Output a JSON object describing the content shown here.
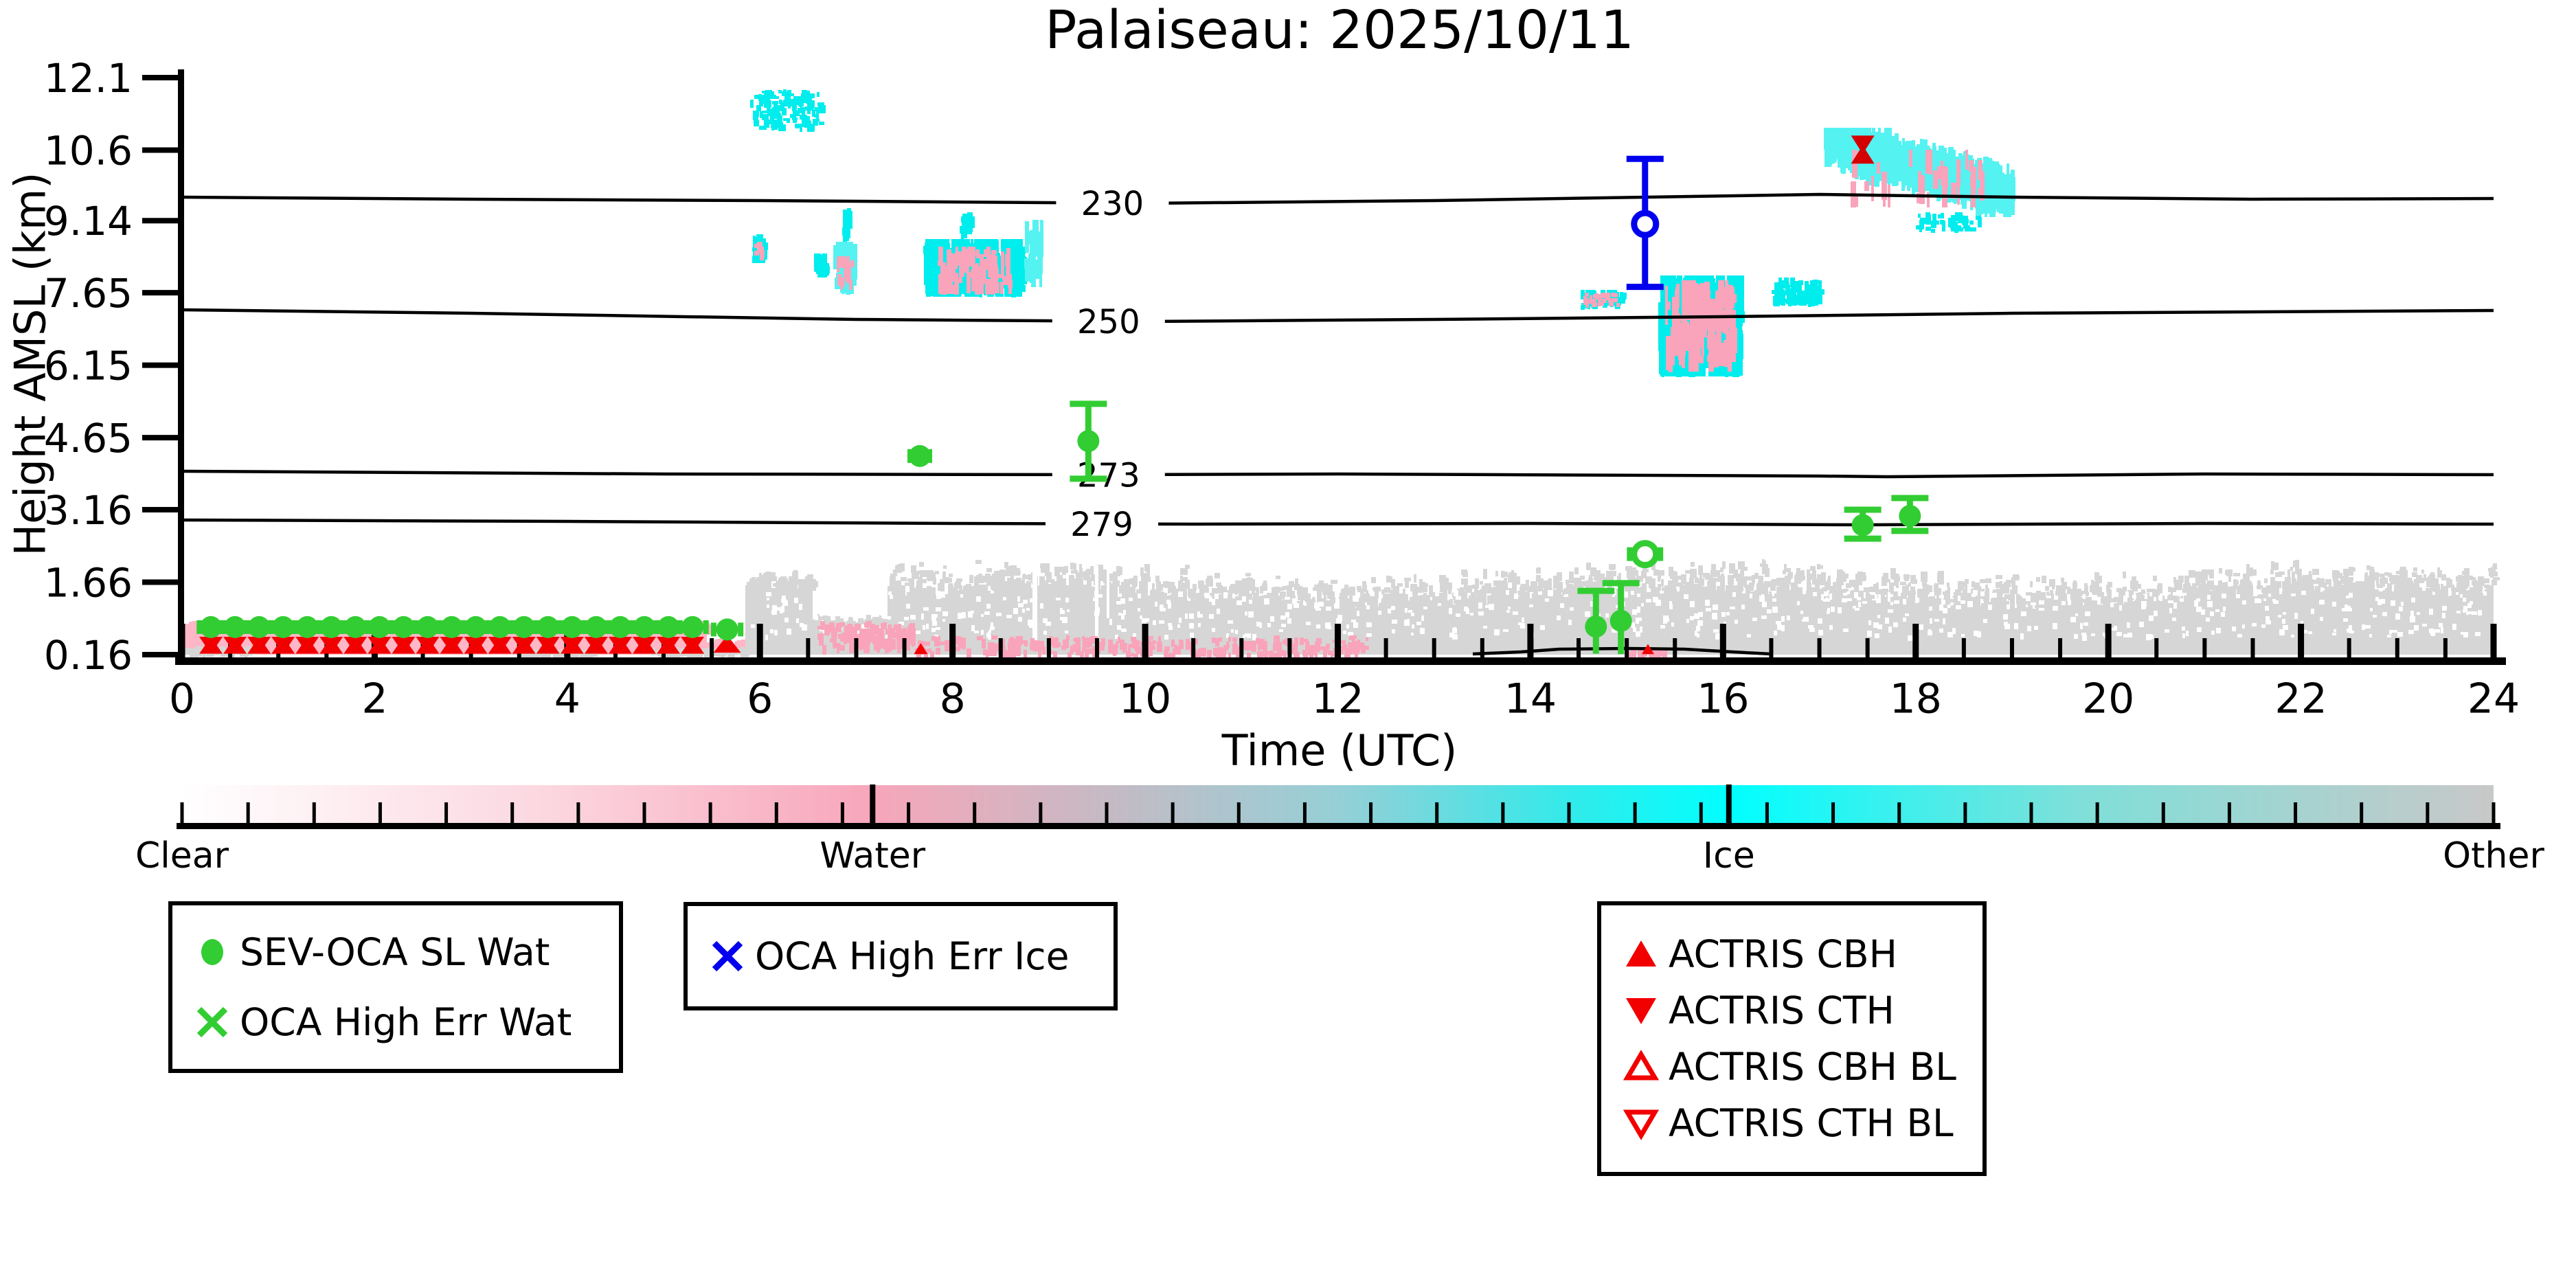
{
  "title": "Palaiseau: 2025/10/11",
  "chart_data": {
    "type": "scatter",
    "title": "Palaiseau: 2025/10/11",
    "xlabel": "Time (UTC)",
    "ylabel": "Height AMSL (km)",
    "xlim": [
      0,
      24
    ],
    "ylim": [
      0.16,
      12.1
    ],
    "grid": false,
    "x_major_ticks": [
      0,
      2,
      4,
      6,
      8,
      10,
      12,
      14,
      16,
      18,
      20,
      22,
      24
    ],
    "x_minor_step": 0.5,
    "y_ticks": [
      "0.16",
      "1.66",
      "3.16",
      "4.65",
      "6.15",
      "7.65",
      "9.14",
      "10.6",
      "12.1"
    ],
    "y_tick_values": [
      0.16,
      1.66,
      3.16,
      4.65,
      6.15,
      7.65,
      9.14,
      10.6,
      12.1
    ],
    "isotherms": [
      {
        "label": "230",
        "label_t": 9.66,
        "pts": [
          [
            0,
            9.62
          ],
          [
            3,
            9.58
          ],
          [
            6,
            9.55
          ],
          [
            10,
            9.5
          ],
          [
            13,
            9.55
          ],
          [
            15.2,
            9.63
          ],
          [
            17,
            9.69
          ],
          [
            19,
            9.63
          ],
          [
            21.5,
            9.58
          ],
          [
            24,
            9.6
          ]
        ]
      },
      {
        "label": "250",
        "label_t": 9.62,
        "pts": [
          [
            0,
            7.3
          ],
          [
            3,
            7.22
          ],
          [
            7,
            7.1
          ],
          [
            10,
            7.05
          ],
          [
            13,
            7.1
          ],
          [
            16,
            7.15
          ],
          [
            19,
            7.22
          ],
          [
            24,
            7.28
          ]
        ]
      },
      {
        "label": "273",
        "label_t": 9.62,
        "pts": [
          [
            0,
            3.95
          ],
          [
            5,
            3.9
          ],
          [
            9.4,
            3.88
          ],
          [
            12,
            3.9
          ],
          [
            17,
            3.86
          ],
          [
            17.7,
            3.84
          ],
          [
            21,
            3.9
          ],
          [
            24,
            3.88
          ]
        ]
      },
      {
        "label": "279",
        "label_t": 9.55,
        "pts": [
          [
            0,
            2.95
          ],
          [
            4,
            2.92
          ],
          [
            8,
            2.88
          ],
          [
            10.5,
            2.86
          ],
          [
            14,
            2.87
          ],
          [
            17.45,
            2.84
          ],
          [
            21,
            2.88
          ],
          [
            24,
            2.86
          ]
        ]
      },
      {
        "label": "",
        "label_t": 0,
        "pts": [
          [
            13.4,
            0.17
          ],
          [
            13.9,
            0.22
          ],
          [
            14.3,
            0.27
          ],
          [
            15.0,
            0.29
          ],
          [
            15.6,
            0.27
          ],
          [
            16.1,
            0.22
          ],
          [
            16.5,
            0.17
          ]
        ]
      }
    ],
    "series": [
      {
        "name": "SEV-OCA SL Wat",
        "marker": "filled-circle",
        "color": "#32cd32",
        "row": {
          "t0": 0.3,
          "step": 0.25,
          "n": 20,
          "y": 0.73,
          "xerr": 0.12
        },
        "points": [
          {
            "t": 5.3,
            "y": 0.73,
            "xerr": 0.14
          },
          {
            "t": 5.66,
            "y": 0.68,
            "xerr": 0.14
          },
          {
            "t": 7.66,
            "y": 4.27,
            "xerr": 0.1
          },
          {
            "t": 9.41,
            "y": 4.58,
            "eu": 0.77,
            "ed": 0.78
          },
          {
            "t": 14.68,
            "y": 0.74,
            "eu": 0.74,
            "ed": 0.56,
            "ed_nocap": true
          },
          {
            "t": 14.94,
            "y": 0.86,
            "eu": 0.78,
            "ed": 0.69,
            "ed_nocap": true
          },
          {
            "t": 17.45,
            "y": 2.84,
            "eu": 0.32,
            "ed": 0.28
          },
          {
            "t": 17.94,
            "y": 3.03,
            "eu": 0.37,
            "ed": 0.31
          }
        ]
      },
      {
        "name": "OCA High Err Wat",
        "marker": "open-circle",
        "color": "#32cd32",
        "points": [
          {
            "t": 15.19,
            "y": 2.24,
            "xerr": 0.16
          }
        ]
      },
      {
        "name": "OCA High Err Ice",
        "marker": "open-circle",
        "color": "#0000ee",
        "points": [
          {
            "t": 15.19,
            "y": 9.07,
            "eu": 1.35,
            "ed": 1.3
          }
        ]
      }
    ],
    "actris": {
      "color": "#f20000",
      "bowtie_row": {
        "t0": 0.3,
        "step": 0.25,
        "n": 21,
        "base_k": 0.18,
        "top_k": 0.53,
        "half_w": 17
      },
      "cbh_single": [
        {
          "t": 5.66,
          "base_k": 0.2,
          "apex_k": 0.56,
          "half_w": 20
        },
        {
          "t": 7.67,
          "base_k": 0.17,
          "apex_k": 0.4,
          "half_w": 10
        },
        {
          "t": 15.22,
          "base_k": 0.17,
          "apex_k": 0.38,
          "half_w": 9
        }
      ],
      "pair_high": {
        "t": 17.45,
        "cth_base_k": 10.9,
        "cth_apex_k": 10.52,
        "cbh_base_k": 10.32,
        "cbh_apex_k": 10.7,
        "half_w": 17
      }
    },
    "background_regions": {
      "pink_solid": [
        {
          "t0": 0,
          "t1": 5.45,
          "k0": 0.16,
          "k1": 0.8,
          "ragged": 0.08
        },
        {
          "t0": 5.45,
          "t1": 5.88,
          "k0": 0.16,
          "k1": 0.42,
          "ragged": 0.12
        }
      ],
      "gray_solid": [
        {
          "t0": 5.85,
          "t1": 6.55,
          "k0": 0.16,
          "k1": 1.72,
          "ragged": 0.22
        },
        {
          "t0": 6.55,
          "t1": 7.33,
          "k0": 0.16,
          "k1": 0.88,
          "ragged": 0.14
        },
        {
          "t0": 7.33,
          "t1": 24,
          "k0": 0.16,
          "k1": 1.78,
          "ragged": 0.42,
          "wavy": true
        },
        {
          "t0": 0,
          "t1": 0.78,
          "k0": 0.16,
          "k1": 0.3,
          "ragged": 0.05
        },
        {
          "t0": 3.5,
          "t1": 4.28,
          "k0": 0.16,
          "k1": 0.25,
          "ragged": 0.04
        },
        {
          "t0": 4.85,
          "t1": 5.85,
          "k0": 0.16,
          "k1": 0.28,
          "ragged": 0.05
        }
      ],
      "white_slits": [
        {
          "t": 8.86,
          "w": 0.05,
          "k0": 0.3,
          "k1": 2.0
        },
        {
          "t": 9.5,
          "w": 0.04,
          "k0": 0.3,
          "k1": 2.0
        },
        {
          "t": 9.62,
          "w": 0.03,
          "k0": 0.9,
          "k1": 2.0
        }
      ],
      "pink_speckle_bands": [
        {
          "t0": 6.6,
          "t1": 7.6,
          "k0": 0.35,
          "k1": 0.85,
          "n": 150
        },
        {
          "t0": 7.6,
          "t1": 12.3,
          "k0": 0.18,
          "k1": 0.55,
          "n": 280
        },
        {
          "t0": 15.0,
          "t1": 15.4,
          "k0": 0.17,
          "k1": 0.32,
          "n": 25
        }
      ],
      "cyan_blobs": [
        {
          "t0": 5.9,
          "t1": 6.62,
          "k0": 11.0,
          "k1": 11.95,
          "n": 130,
          "dots": true
        },
        {
          "t0": 5.92,
          "t1": 6.04,
          "k0": 8.25,
          "k1": 8.85,
          "n": 55
        },
        {
          "t0": 6.55,
          "t1": 6.67,
          "k0": 7.95,
          "k1": 8.45,
          "n": 45
        },
        {
          "t0": 6.76,
          "t1": 6.97,
          "k0": 7.6,
          "k1": 8.7,
          "n": 65
        },
        {
          "t0": 6.85,
          "t1": 6.92,
          "k0": 8.7,
          "k1": 9.42,
          "n": 18
        },
        {
          "t0": 7.7,
          "t1": 8.72,
          "k0": 7.55,
          "k1": 8.75,
          "n": 430
        },
        {
          "t0": 8.08,
          "t1": 8.18,
          "k0": 8.75,
          "k1": 9.3,
          "n": 20
        },
        {
          "t0": 8.74,
          "t1": 8.92,
          "k0": 7.75,
          "k1": 9.15,
          "n": 32
        },
        {
          "t0": 14.52,
          "t1": 14.96,
          "k0": 7.3,
          "k1": 7.7,
          "n": 65
        },
        {
          "t0": 15.33,
          "t1": 16.18,
          "k0": 5.9,
          "k1": 8.0,
          "n": 540
        },
        {
          "t0": 16.5,
          "t1": 17.0,
          "k0": 7.35,
          "k1": 7.95,
          "n": 95
        },
        {
          "t0": 17.04,
          "t1": 19.0,
          "k0": 9.2,
          "k1": 11.05,
          "n": 540,
          "desc": true
        },
        {
          "t0": 18.0,
          "t1": 18.65,
          "k0": 8.9,
          "k1": 9.3,
          "n": 45
        }
      ],
      "pink_blobs": [
        {
          "t0": 5.94,
          "t1": 6.02,
          "k0": 8.3,
          "k1": 8.7,
          "n": 12
        },
        {
          "t0": 6.8,
          "t1": 6.95,
          "k0": 7.7,
          "k1": 8.4,
          "n": 16
        },
        {
          "t0": 7.85,
          "t1": 8.6,
          "k0": 7.6,
          "k1": 8.6,
          "n": 95
        },
        {
          "t0": 14.55,
          "t1": 14.9,
          "k0": 7.35,
          "k1": 7.65,
          "n": 30
        },
        {
          "t0": 15.4,
          "t1": 16.1,
          "k0": 6.0,
          "k1": 7.9,
          "n": 130
        },
        {
          "t0": 17.3,
          "t1": 18.7,
          "k0": 9.4,
          "k1": 10.6,
          "n": 35
        }
      ]
    },
    "colors": {
      "green": "#32cd32",
      "blue": "#0000ee",
      "red": "#f20000",
      "red_dark": "#d40000",
      "cyan": "#00eded",
      "cyan_light": "#55f2f2",
      "pink": "#ffb6c6",
      "pink_speckle": "#f9a4ba",
      "gray": "#d6d6d6",
      "contour": "#000000"
    }
  },
  "colorbar": {
    "labels": [
      {
        "text": "Clear",
        "t": 0
      },
      {
        "text": "Water",
        "t": 7.17
      },
      {
        "text": "Ice",
        "t": 16.06
      },
      {
        "text": "Other",
        "t": 24
      }
    ],
    "minor_divisions": 35,
    "gradient": [
      {
        "p": 0.0,
        "c": "#ffffff"
      },
      {
        "p": 0.15,
        "c": "#fcd9e2"
      },
      {
        "p": 0.3,
        "c": "#f7a6ba"
      },
      {
        "p": 0.4,
        "c": "#c5bac4"
      },
      {
        "p": 0.5,
        "c": "#96cfd6"
      },
      {
        "p": 0.6,
        "c": "#33eaea"
      },
      {
        "p": 0.67,
        "c": "#00ffff"
      },
      {
        "p": 0.82,
        "c": "#7fdfd9"
      },
      {
        "p": 1.0,
        "c": "#c8c8c8"
      }
    ]
  },
  "legends": {
    "box1": {
      "items": [
        {
          "label": "SEV-OCA SL Wat",
          "marker": "green-circle"
        },
        {
          "label": "OCA High Err Wat",
          "marker": "green-x"
        }
      ]
    },
    "box2": {
      "items": [
        {
          "label": "OCA High Err Ice",
          "marker": "blue-x"
        }
      ]
    },
    "box3": {
      "items": [
        {
          "label": "ACTRIS CBH",
          "marker": "red-tri-up"
        },
        {
          "label": "ACTRIS CTH",
          "marker": "red-tri-down"
        },
        {
          "label": "ACTRIS CBH BL",
          "marker": "red-tri-up-open"
        },
        {
          "label": "ACTRIS CTH BL",
          "marker": "red-tri-down-open"
        }
      ]
    }
  }
}
